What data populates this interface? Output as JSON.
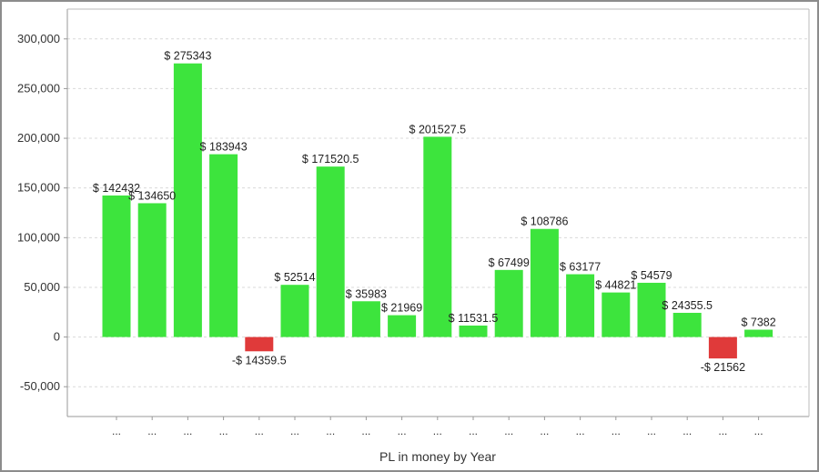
{
  "chart_data": {
    "type": "bar",
    "title": "",
    "xlabel": "PL in money by Year",
    "ylabel": "",
    "categories": [
      "...",
      "...",
      "...",
      "...",
      "...",
      "...",
      "...",
      "...",
      "...",
      "...",
      "...",
      "...",
      "...",
      "...",
      "...",
      "...",
      "...",
      "...",
      "..."
    ],
    "values": [
      142432,
      134650,
      275343,
      183943,
      -14359.5,
      52514,
      171520.5,
      35983,
      21969,
      201527.5,
      11531.5,
      67499,
      108786,
      63177,
      44821,
      54579,
      24355.5,
      -21562,
      7382
    ],
    "data_labels": [
      "$ 142432",
      "$ 134650",
      "$ 275343",
      "$ 183943",
      "-$ 14359.5",
      "$ 52514",
      "$ 171520.5",
      "$ 35983",
      "$ 21969",
      "$ 201527.5",
      "$ 11531.5",
      "$ 67499",
      "$ 108786",
      "$ 63177",
      "$ 44821",
      "$ 54579",
      "$ 24355.5",
      "-$ 21562",
      "$ 7382"
    ],
    "ylim": [
      -80000,
      330000
    ],
    "yticks": [
      -50000,
      0,
      50000,
      100000,
      150000,
      200000,
      250000,
      300000
    ],
    "ytick_labels": [
      "-50,000",
      "0",
      "50,000",
      "100,000",
      "150,000",
      "200,000",
      "250,000",
      "300,000"
    ],
    "grid": true,
    "legend": "none",
    "colors": {
      "positive": "#3de43d",
      "negative": "#e03a3a",
      "grid": "#d9d9d9",
      "axis": "#999999"
    }
  }
}
